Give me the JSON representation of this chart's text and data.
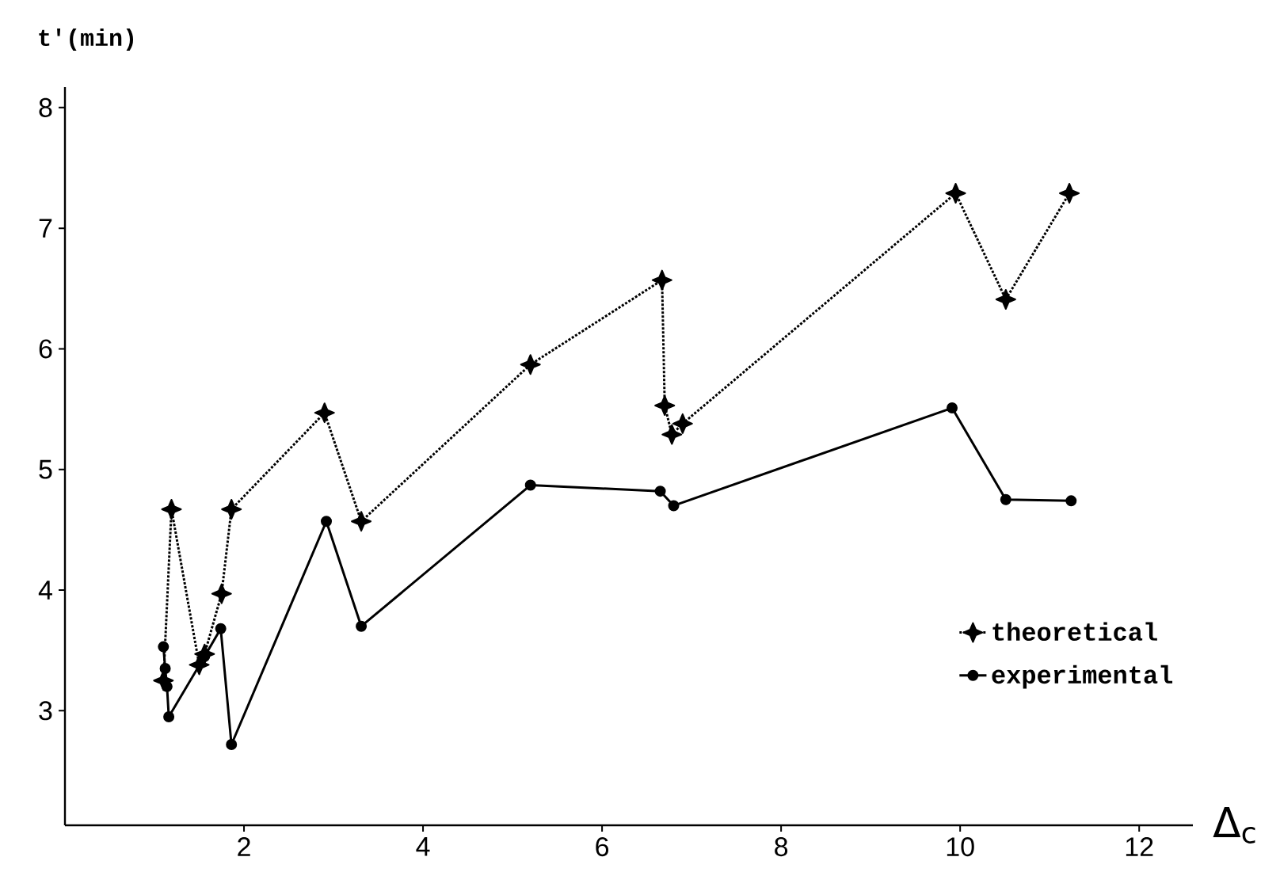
{
  "chart_data": {
    "type": "line",
    "xlabel": "Δ$_{c}$",
    "ylabel": "t'(min)",
    "xlim": [
      0,
      12.6
    ],
    "ylim": [
      2.05,
      8.17
    ],
    "xticks": [
      2,
      4,
      6,
      8,
      10,
      12
    ],
    "yticks": [
      3,
      4,
      5,
      6,
      7,
      8
    ],
    "legend": "bottom right",
    "grid": false,
    "series": [
      {
        "name": "theoretical",
        "color": "#000000",
        "marker": "star",
        "line_style": "dotted",
        "x": [
          1.1,
          1.19,
          1.5,
          1.56,
          1.75,
          1.86,
          2.9,
          3.31,
          5.2,
          6.67,
          6.7,
          6.78,
          6.9,
          9.95,
          10.51,
          11.22
        ],
        "values": [
          3.25,
          4.67,
          3.38,
          3.47,
          3.97,
          4.67,
          5.47,
          4.57,
          5.87,
          6.57,
          5.53,
          5.29,
          5.38,
          7.29,
          6.41,
          7.29
        ]
      },
      {
        "name": "experimental",
        "color": "#000000",
        "marker": "circle",
        "line_style": "solid",
        "x": [
          1.1,
          1.12,
          1.14,
          1.16,
          1.56,
          1.74,
          1.86,
          2.92,
          3.31,
          5.2,
          6.65,
          6.8,
          9.91,
          10.51,
          11.24
        ],
        "values": [
          3.53,
          3.35,
          3.2,
          2.95,
          3.45,
          3.68,
          2.72,
          4.57,
          3.7,
          4.87,
          4.82,
          4.7,
          5.51,
          4.75,
          4.74
        ]
      }
    ]
  }
}
